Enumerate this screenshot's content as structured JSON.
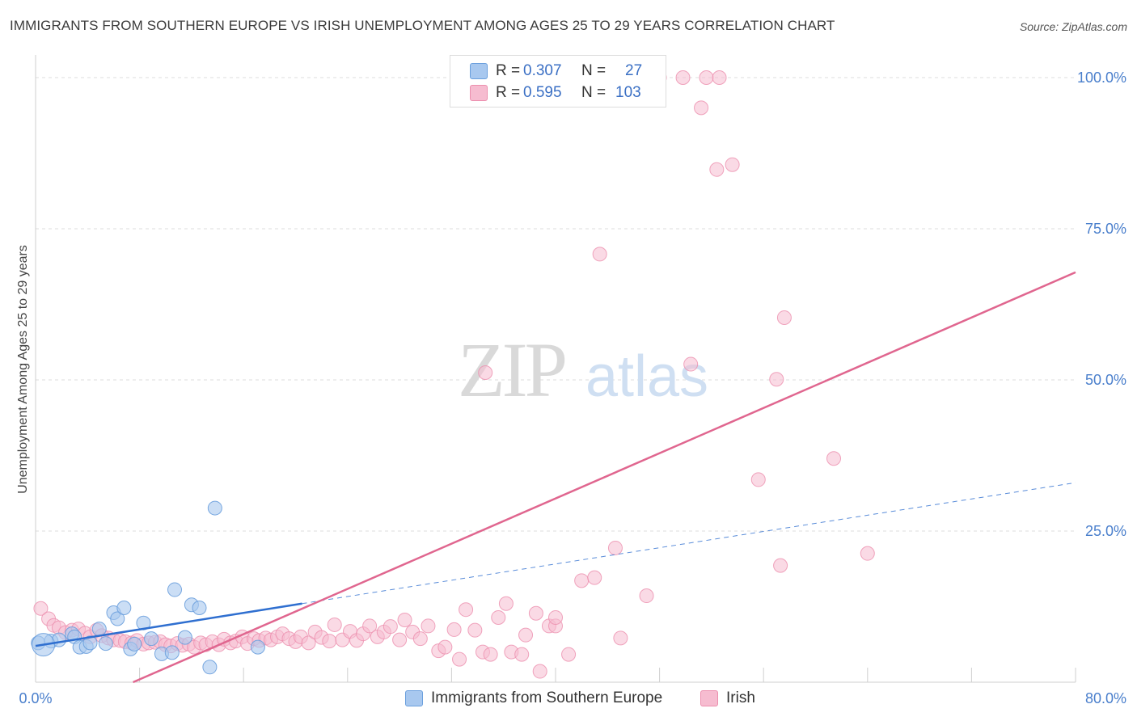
{
  "title": "IMMIGRANTS FROM SOUTHERN EUROPE VS IRISH UNEMPLOYMENT AMONG AGES 25 TO 29 YEARS CORRELATION CHART",
  "source": "Source: ZipAtlas.com",
  "watermark": {
    "part1": "ZIP",
    "part2": "atlas"
  },
  "legend": {
    "rows": [
      {
        "r_label": "R =",
        "r_value": "0.307",
        "n_label": "N =",
        "n_value": "27",
        "color": "#a8c8ef",
        "border": "#6a9fdd"
      },
      {
        "r_label": "R =",
        "r_value": "0.595",
        "n_label": "N =",
        "n_value": "103",
        "color": "#f6bcd0",
        "border": "#ec8fae"
      }
    ]
  },
  "bottom_legend": [
    {
      "label": "Immigrants from Southern Europe",
      "color": "#a8c8ef",
      "border": "#6a9fdd"
    },
    {
      "label": "Irish",
      "color": "#f6bcd0",
      "border": "#ec8fae"
    }
  ],
  "chart_data": {
    "type": "scatter",
    "ylabel": "Unemployment Among Ages 25 to 29 years",
    "xlim": [
      0,
      80
    ],
    "ylim": [
      0,
      100
    ],
    "x_tick_labels": [
      {
        "value": 0,
        "label": "0.0%"
      },
      {
        "value": 80,
        "label": "80.0%"
      }
    ],
    "y_tick_labels": [
      {
        "value": 25,
        "label": "25.0%"
      },
      {
        "value": 50,
        "label": "50.0%"
      },
      {
        "value": 75,
        "label": "75.0%"
      },
      {
        "value": 100,
        "label": "100.0%"
      }
    ],
    "grid": true,
    "colors": {
      "blue": "#6a9fdd",
      "blue_fill": "#a8c8ef",
      "pink": "#ec8fae",
      "pink_fill": "#f6bcd0",
      "blue_line": "#2f6fd0",
      "pink_line": "#e0668f"
    },
    "series": [
      {
        "name": "Immigrants from Southern Europe",
        "points": [
          [
            0.2,
            6.5
          ],
          [
            1.2,
            6.8
          ],
          [
            1.8,
            7.0
          ],
          [
            2.8,
            8.0
          ],
          [
            3.0,
            7.5
          ],
          [
            3.4,
            5.8
          ],
          [
            3.9,
            5.9
          ],
          [
            4.2,
            6.5
          ],
          [
            4.9,
            8.8
          ],
          [
            5.4,
            6.4
          ],
          [
            6.0,
            11.5
          ],
          [
            6.3,
            10.5
          ],
          [
            6.8,
            12.3
          ],
          [
            7.3,
            5.5
          ],
          [
            7.6,
            6.3
          ],
          [
            8.3,
            9.8
          ],
          [
            8.9,
            7.2
          ],
          [
            9.7,
            4.7
          ],
          [
            10.5,
            4.9
          ],
          [
            10.7,
            15.3
          ],
          [
            11.5,
            7.4
          ],
          [
            12.0,
            12.8
          ],
          [
            12.6,
            12.3
          ],
          [
            13.4,
            2.5
          ],
          [
            13.8,
            28.8
          ],
          [
            17.1,
            5.8
          ],
          [
            0.6,
            6.2
          ]
        ],
        "trend": {
          "solid": [
            [
              0.0,
              6.0
            ],
            [
              20.5,
              13.0
            ]
          ],
          "dashed": [
            [
              20.5,
              13.0
            ],
            [
              80.0,
              33.0
            ]
          ]
        }
      },
      {
        "name": "Irish",
        "points": [
          [
            0.4,
            12.2
          ],
          [
            1.0,
            10.5
          ],
          [
            1.4,
            9.4
          ],
          [
            1.8,
            9.0
          ],
          [
            2.3,
            8.2
          ],
          [
            2.8,
            8.6
          ],
          [
            3.3,
            8.8
          ],
          [
            3.8,
            8.1
          ],
          [
            4.2,
            7.5
          ],
          [
            4.7,
            8.6
          ],
          [
            5.1,
            7.7
          ],
          [
            5.6,
            7.3
          ],
          [
            6.0,
            7.0
          ],
          [
            6.5,
            6.9
          ],
          [
            6.9,
            6.7
          ],
          [
            7.4,
            6.5
          ],
          [
            7.8,
            6.9
          ],
          [
            8.3,
            6.3
          ],
          [
            8.7,
            6.5
          ],
          [
            9.2,
            6.6
          ],
          [
            9.6,
            6.7
          ],
          [
            10.0,
            6.2
          ],
          [
            10.4,
            6.0
          ],
          [
            10.9,
            6.4
          ],
          [
            11.3,
            6.1
          ],
          [
            11.8,
            6.3
          ],
          [
            12.2,
            5.8
          ],
          [
            12.7,
            6.5
          ],
          [
            13.1,
            6.2
          ],
          [
            13.6,
            6.7
          ],
          [
            14.1,
            6.2
          ],
          [
            14.5,
            7.1
          ],
          [
            15.0,
            6.5
          ],
          [
            15.4,
            6.8
          ],
          [
            15.9,
            7.5
          ],
          [
            16.3,
            6.4
          ],
          [
            16.8,
            7.2
          ],
          [
            17.2,
            6.9
          ],
          [
            17.7,
            7.3
          ],
          [
            18.1,
            7.0
          ],
          [
            18.6,
            7.5
          ],
          [
            19.0,
            8.0
          ],
          [
            19.5,
            7.2
          ],
          [
            20.0,
            6.7
          ],
          [
            20.4,
            7.5
          ],
          [
            21.0,
            6.5
          ],
          [
            21.5,
            8.3
          ],
          [
            22.0,
            7.4
          ],
          [
            22.6,
            6.8
          ],
          [
            23.0,
            9.5
          ],
          [
            23.6,
            7.0
          ],
          [
            24.2,
            8.4
          ],
          [
            24.7,
            6.9
          ],
          [
            25.2,
            8.0
          ],
          [
            25.7,
            9.3
          ],
          [
            26.3,
            7.5
          ],
          [
            26.8,
            8.3
          ],
          [
            27.3,
            9.2
          ],
          [
            28.0,
            7.0
          ],
          [
            28.4,
            10.3
          ],
          [
            29.0,
            8.3
          ],
          [
            29.6,
            7.2
          ],
          [
            30.2,
            9.3
          ],
          [
            31.0,
            5.2
          ],
          [
            31.5,
            5.8
          ],
          [
            32.2,
            8.7
          ],
          [
            32.6,
            3.8
          ],
          [
            33.1,
            12.0
          ],
          [
            33.8,
            8.6
          ],
          [
            34.4,
            5.0
          ],
          [
            35.0,
            4.6
          ],
          [
            35.6,
            10.7
          ],
          [
            36.2,
            13.0
          ],
          [
            36.6,
            5.0
          ],
          [
            37.4,
            4.6
          ],
          [
            37.7,
            7.8
          ],
          [
            38.5,
            11.4
          ],
          [
            38.8,
            1.8
          ],
          [
            39.5,
            9.3
          ],
          [
            40.0,
            9.3
          ],
          [
            40.0,
            10.7
          ],
          [
            41.0,
            4.6
          ],
          [
            42.0,
            16.8
          ],
          [
            43.0,
            17.3
          ],
          [
            43.4,
            70.8
          ],
          [
            44.6,
            22.2
          ],
          [
            45.0,
            7.3
          ],
          [
            47.0,
            14.3
          ],
          [
            48.0,
            100.0
          ],
          [
            49.8,
            100.0
          ],
          [
            50.4,
            52.6
          ],
          [
            51.2,
            95.0
          ],
          [
            51.6,
            100.0
          ],
          [
            52.4,
            84.8
          ],
          [
            52.6,
            100.0
          ],
          [
            53.6,
            85.6
          ],
          [
            55.6,
            33.5
          ],
          [
            57.0,
            50.1
          ],
          [
            57.3,
            19.3
          ],
          [
            57.6,
            60.3
          ],
          [
            61.4,
            37.0
          ],
          [
            64.0,
            21.3
          ],
          [
            34.6,
            51.2
          ]
        ],
        "trend": {
          "solid": [
            [
              7.5,
              0.0
            ],
            [
              80.0,
              67.8
            ]
          ]
        }
      }
    ]
  }
}
